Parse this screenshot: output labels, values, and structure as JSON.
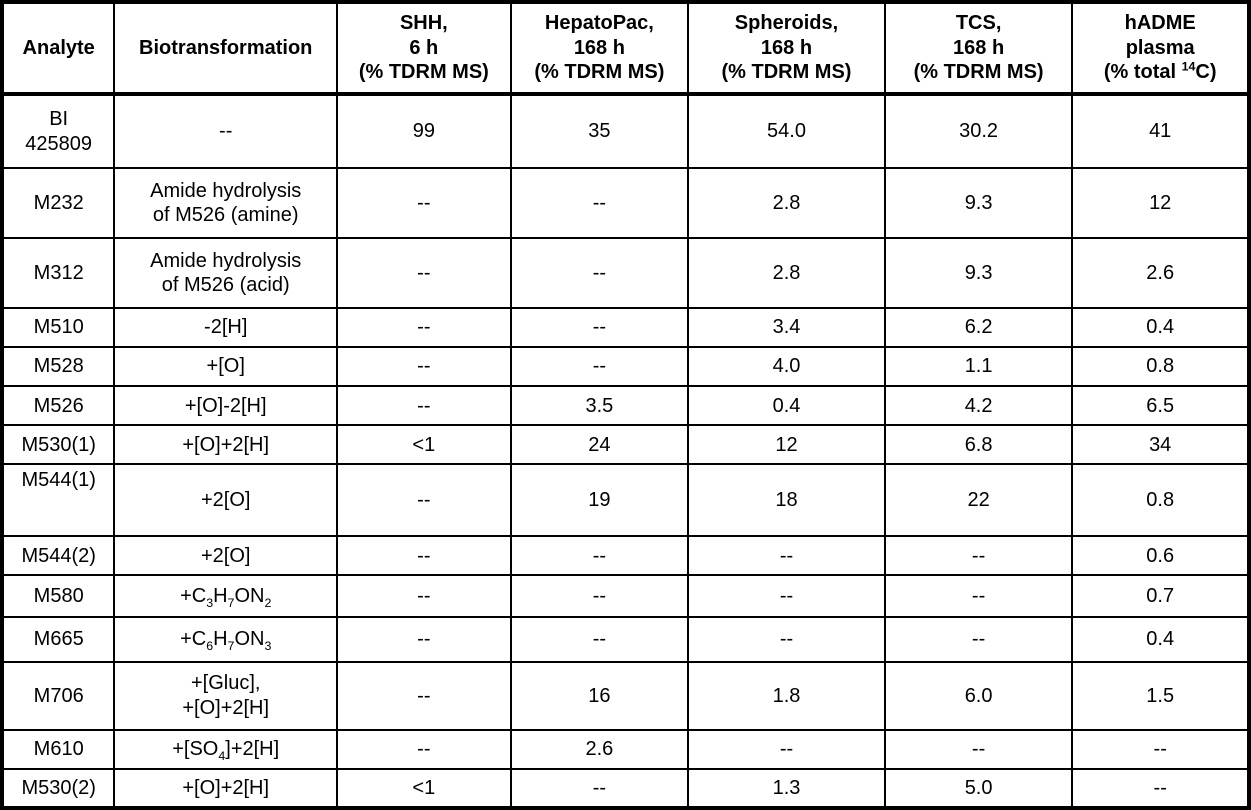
{
  "colors": {
    "border": "#000000",
    "text": "#000000",
    "background": "#ffffff"
  },
  "table": {
    "columns": [
      {
        "id": "analyte",
        "label": "Analyte"
      },
      {
        "id": "biotransformation",
        "label": "Biotransformation"
      },
      {
        "id": "shh",
        "label": "SHH,<br>6 h<br>(% TDRM MS)"
      },
      {
        "id": "hepatopac",
        "label": "HepatoPac,<br>168 h<br>(% TDRM MS)"
      },
      {
        "id": "spheroids",
        "label": "Spheroids,<br>168 h<br>(% TDRM MS)"
      },
      {
        "id": "tcs",
        "label": "TCS,<br>168 h<br>(% TDRM MS)"
      },
      {
        "id": "hadme-plasma",
        "label": "hADME<br>plasma<br>(% total <sup>14</sup>C)"
      }
    ],
    "rows": [
      {
        "cells": [
          "BI<br>425809",
          "--",
          "99",
          "35",
          "54.0",
          "30.2",
          "41"
        ]
      },
      {
        "cells": [
          "M232",
          "Amide hydrolysis<br>of M526 (amine)",
          "--",
          "--",
          "2.8",
          "9.3",
          "12"
        ]
      },
      {
        "cells": [
          "M312",
          "Amide hydrolysis<br>of M526 (acid)",
          "--",
          "--",
          "2.8",
          "9.3",
          "2.6"
        ]
      },
      {
        "cells": [
          "M510",
          "-2[H]",
          "--",
          "--",
          "3.4",
          "6.2",
          "0.4"
        ]
      },
      {
        "cells": [
          "M528",
          "+[O]",
          "--",
          "--",
          "4.0",
          "1.1",
          "0.8"
        ]
      },
      {
        "cells": [
          "M526",
          "+[O]-2[H]",
          "--",
          "3.5",
          "0.4",
          "4.2",
          "6.5"
        ]
      },
      {
        "cells": [
          "M530(1)",
          "+[O]+2[H]",
          "&lt;1",
          "24",
          "12",
          "6.8",
          "34"
        ]
      },
      {
        "cells": [
          "M544(1)",
          "+2[O]",
          "--",
          "19",
          "18",
          "22",
          "0.8"
        ]
      },
      {
        "cells": [
          "M544(2)",
          "+2[O]",
          "--",
          "--",
          "--",
          "--",
          "0.6"
        ]
      },
      {
        "cells": [
          "M580",
          "+C<sub>3</sub>H<sub>7</sub>ON<sub>2</sub>",
          "--",
          "--",
          "--",
          "--",
          "0.7"
        ]
      },
      {
        "cells": [
          "M665",
          "+C<sub>6</sub>H<sub>7</sub>ON<sub>3</sub>",
          "--",
          "--",
          "--",
          "--",
          "0.4"
        ]
      },
      {
        "cells": [
          "M706",
          "+[Gluc],<br>+[O]+2[H]",
          "--",
          "16",
          "1.8",
          "6.0",
          "1.5"
        ]
      },
      {
        "cells": [
          "M610",
          "+[SO<sub>4</sub>]+2[H]",
          "--",
          "2.6",
          "--",
          "--",
          "--"
        ]
      },
      {
        "cells": [
          "M530(2)",
          "+[O]+2[H]",
          "&lt;1",
          "--",
          "1.3",
          "5.0",
          "--"
        ]
      }
    ]
  }
}
